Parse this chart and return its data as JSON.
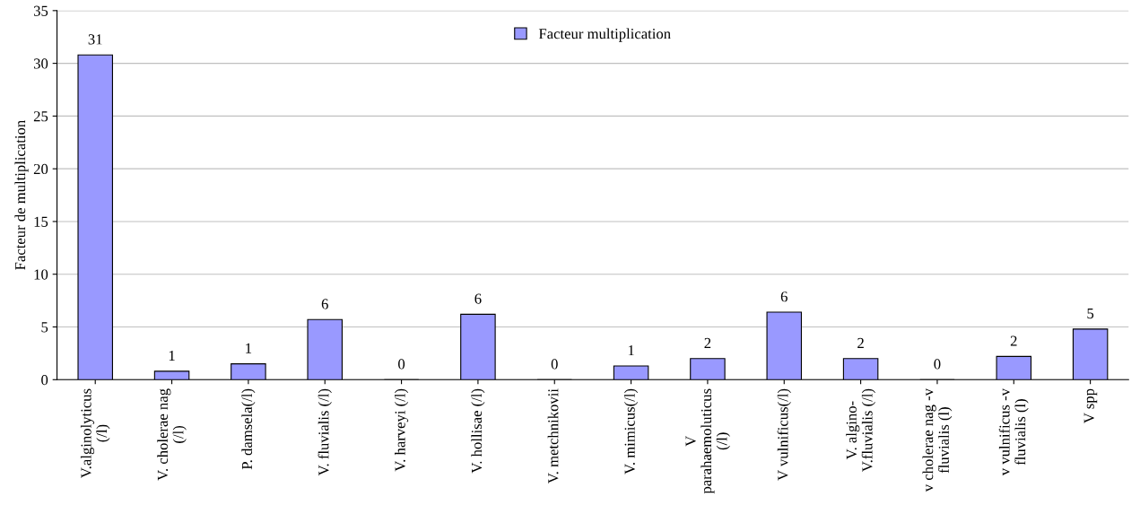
{
  "chart_data": {
    "type": "bar",
    "ylabel": "Facteur de multiplication",
    "categories": [
      "V.alginolyticus\n(/l)",
      "V. cholerae nag\n(/l)",
      "P. damsela(/l)",
      "V. fluvialis (/l)",
      "V. harveyi (/l)",
      "V. hollisae (/l)",
      "V. metchnikovii",
      "V. mimicus(/l)",
      "V\nparahaemoluticus\n(/l)",
      "V vulnificus(/l)",
      "V. algino-\nV.fluvialis (/l)",
      "v cholerae nag -v\nfluvialis (l)",
      "v vulnificus -v\nfluvialis (l)",
      "V spp"
    ],
    "series": [
      {
        "name": "Facteur multiplication",
        "color": "#9999ff",
        "values": [
          30.8,
          0.8,
          1.5,
          5.7,
          0,
          6.2,
          0,
          1.3,
          2.0,
          6.4,
          2.0,
          0,
          2.2,
          4.8
        ],
        "value_labels": [
          "31",
          "1",
          "1",
          "6",
          "0",
          "6",
          "0",
          "1",
          "2",
          "6",
          "2",
          "0",
          "2",
          "5"
        ]
      }
    ],
    "ylim": [
      0,
      35
    ],
    "yticks": [
      0,
      5,
      10,
      15,
      20,
      25,
      30,
      35
    ],
    "grid": "y",
    "legend": "top"
  }
}
